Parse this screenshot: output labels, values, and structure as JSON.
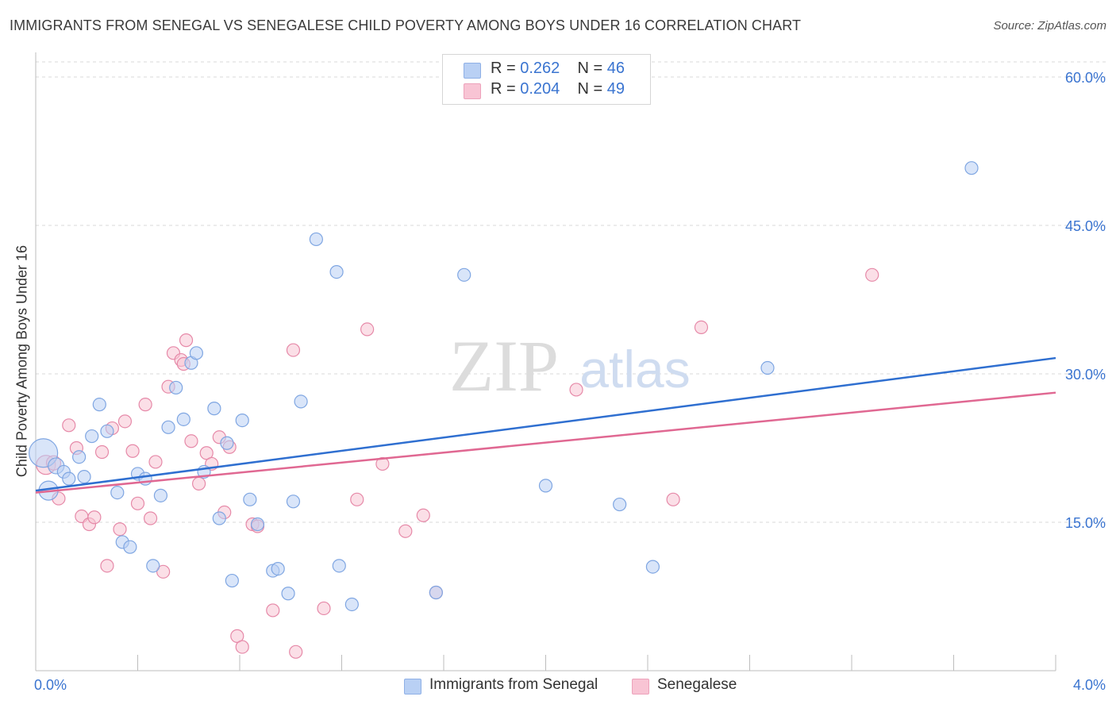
{
  "title": "IMMIGRANTS FROM SENEGAL VS SENEGALESE CHILD POVERTY AMONG BOYS UNDER 16 CORRELATION CHART",
  "source": "Source: ZipAtlas.com",
  "watermark": {
    "zip": "ZIP",
    "atlas": "atlas"
  },
  "legend": {
    "r_label": "R =",
    "n_label": "N =",
    "series1": {
      "r": "0.262",
      "n": "46"
    },
    "series2": {
      "r": "0.204",
      "n": "49"
    }
  },
  "colors": {
    "blue": "#3a74d0",
    "blue_fill": "#b9d0f4",
    "blue_line": "#2f6fd0",
    "pink_fill": "#f8c4d4",
    "pink_stroke": "#e689a8",
    "pink_line": "#e06892",
    "grid": "#d8d8d8",
    "axis_text": "#3a74d0"
  },
  "chart_data": {
    "type": "scatter",
    "title": "IMMIGRANTS FROM SENEGAL VS SENEGALESE CHILD POVERTY AMONG BOYS UNDER 16 CORRELATION CHART",
    "xlabel": "",
    "ylabel": "Child Poverty Among Boys Under 16",
    "xlim": [
      0,
      4
    ],
    "ylim": [
      0,
      62
    ],
    "x_tick_labels": [
      "0.0%",
      "4.0%"
    ],
    "y_ticks": [
      15,
      30,
      45,
      60
    ],
    "y_tick_labels": [
      "15.0%",
      "30.0%",
      "45.0%",
      "60.0%"
    ],
    "grid": true,
    "legend_position": "top-center",
    "series": [
      {
        "name": "Immigrants from Senegal",
        "color": "#b9d0f4",
        "trend": {
          "x": [
            0,
            4
          ],
          "y": [
            18.2,
            31.6
          ]
        },
        "points": [
          [
            0.03,
            22.0,
            18
          ],
          [
            0.05,
            18.2,
            12
          ],
          [
            0.08,
            20.7,
            10
          ],
          [
            0.11,
            20.1,
            8
          ],
          [
            0.13,
            19.4,
            8
          ],
          [
            0.17,
            21.6,
            8
          ],
          [
            0.19,
            19.6,
            8
          ],
          [
            0.22,
            23.7,
            8
          ],
          [
            0.25,
            26.9,
            8
          ],
          [
            0.28,
            24.2,
            8
          ],
          [
            0.32,
            18.0,
            8
          ],
          [
            0.34,
            13.0,
            8
          ],
          [
            0.37,
            12.5,
            8
          ],
          [
            0.4,
            19.9,
            8
          ],
          [
            0.43,
            19.4,
            8
          ],
          [
            0.46,
            10.6,
            8
          ],
          [
            0.49,
            17.7,
            8
          ],
          [
            0.52,
            24.6,
            8
          ],
          [
            0.55,
            28.6,
            8
          ],
          [
            0.58,
            25.4,
            8
          ],
          [
            0.61,
            31.1,
            8
          ],
          [
            0.63,
            32.1,
            8
          ],
          [
            0.66,
            20.1,
            8
          ],
          [
            0.7,
            26.5,
            8
          ],
          [
            0.72,
            15.4,
            8
          ],
          [
            0.75,
            23.0,
            8
          ],
          [
            0.77,
            9.1,
            8
          ],
          [
            0.81,
            25.3,
            8
          ],
          [
            0.84,
            17.3,
            8
          ],
          [
            0.87,
            14.8,
            8
          ],
          [
            0.93,
            10.1,
            8
          ],
          [
            0.95,
            10.3,
            8
          ],
          [
            0.99,
            7.8,
            8
          ],
          [
            1.01,
            17.1,
            8
          ],
          [
            1.04,
            27.2,
            8
          ],
          [
            1.1,
            43.6,
            8
          ],
          [
            1.18,
            40.3,
            8
          ],
          [
            1.19,
            10.6,
            8
          ],
          [
            1.24,
            6.7,
            8
          ],
          [
            1.57,
            7.9,
            8
          ],
          [
            1.68,
            40.0,
            8
          ],
          [
            2.0,
            18.7,
            8
          ],
          [
            2.29,
            16.8,
            8
          ],
          [
            2.42,
            10.5,
            8
          ],
          [
            2.87,
            30.6,
            8
          ],
          [
            3.67,
            50.8,
            8
          ]
        ]
      },
      {
        "name": "Senegalese",
        "color": "#f8c4d4",
        "trend": {
          "x": [
            0,
            4
          ],
          "y": [
            18.0,
            28.1
          ]
        },
        "points": [
          [
            0.04,
            20.8,
            12
          ],
          [
            0.07,
            21.0,
            9
          ],
          [
            0.09,
            17.4,
            8
          ],
          [
            0.13,
            24.8,
            8
          ],
          [
            0.16,
            22.5,
            8
          ],
          [
            0.18,
            15.6,
            8
          ],
          [
            0.21,
            14.8,
            8
          ],
          [
            0.23,
            15.5,
            8
          ],
          [
            0.26,
            22.1,
            8
          ],
          [
            0.28,
            10.6,
            8
          ],
          [
            0.3,
            24.5,
            8
          ],
          [
            0.33,
            14.3,
            8
          ],
          [
            0.35,
            25.2,
            8
          ],
          [
            0.38,
            22.2,
            8
          ],
          [
            0.4,
            16.9,
            8
          ],
          [
            0.43,
            26.9,
            8
          ],
          [
            0.45,
            15.4,
            8
          ],
          [
            0.47,
            21.1,
            8
          ],
          [
            0.5,
            10.0,
            8
          ],
          [
            0.52,
            28.7,
            8
          ],
          [
            0.54,
            32.1,
            8
          ],
          [
            0.57,
            31.4,
            8
          ],
          [
            0.59,
            33.4,
            8
          ],
          [
            0.61,
            23.2,
            8
          ],
          [
            0.64,
            18.9,
            8
          ],
          [
            0.67,
            22.0,
            8
          ],
          [
            0.69,
            20.9,
            8
          ],
          [
            0.72,
            23.6,
            8
          ],
          [
            0.74,
            16.0,
            8
          ],
          [
            0.76,
            22.6,
            8
          ],
          [
            0.79,
            3.5,
            8
          ],
          [
            0.81,
            2.4,
            8
          ],
          [
            0.85,
            14.8,
            8
          ],
          [
            0.87,
            14.6,
            8
          ],
          [
            0.93,
            6.1,
            8
          ],
          [
            1.01,
            32.4,
            8
          ],
          [
            1.02,
            1.9,
            8
          ],
          [
            1.13,
            6.3,
            8
          ],
          [
            1.26,
            17.3,
            8
          ],
          [
            1.3,
            34.5,
            8
          ],
          [
            1.36,
            20.9,
            8
          ],
          [
            1.45,
            14.1,
            8
          ],
          [
            1.52,
            15.7,
            8
          ],
          [
            1.57,
            7.9,
            8
          ],
          [
            2.12,
            28.4,
            8
          ],
          [
            2.5,
            17.3,
            8
          ],
          [
            2.61,
            34.7,
            8
          ],
          [
            3.28,
            40.0,
            8
          ],
          [
            0.58,
            31.0,
            8
          ]
        ]
      }
    ]
  }
}
